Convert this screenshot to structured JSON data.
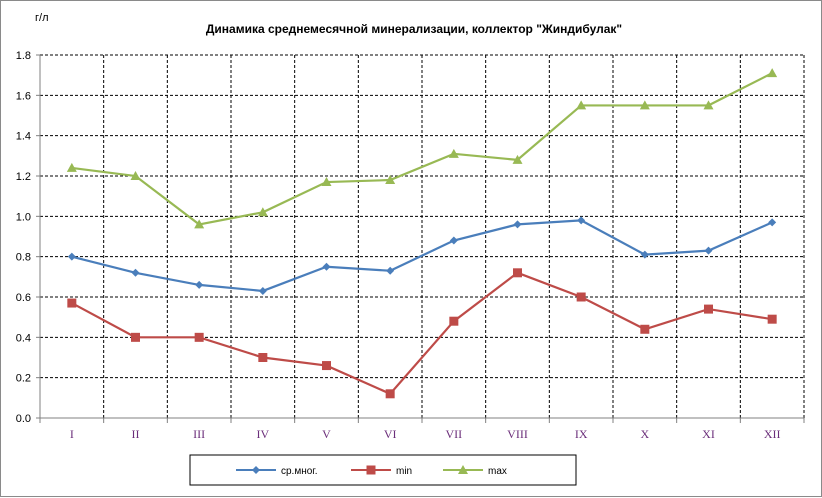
{
  "chart_data": {
    "type": "line",
    "title": "Динамика среднемесячной минерализации, коллектор \"Жиндибулак\"",
    "ylabel": "г/л",
    "xlabel": "",
    "categories": [
      "I",
      "II",
      "III",
      "IV",
      "V",
      "VI",
      "VII",
      "VIII",
      "IX",
      "X",
      "XI",
      "XII"
    ],
    "ylim": [
      0,
      1.8
    ],
    "yticks": [
      "0.0",
      "0.2",
      "0.4",
      "0.6",
      "0.8",
      "1.0",
      "1.2",
      "1.4",
      "1.6",
      "1.8"
    ],
    "grid": true,
    "legend_position": "bottom",
    "series": [
      {
        "name": "ср.мног.",
        "color": "#4a7ebb",
        "marker": "diamond",
        "values": [
          0.8,
          0.72,
          0.66,
          0.63,
          0.75,
          0.73,
          0.88,
          0.96,
          0.98,
          0.81,
          0.83,
          0.97
        ]
      },
      {
        "name": "min",
        "color": "#be4b48",
        "marker": "square",
        "values": [
          0.57,
          0.4,
          0.4,
          0.3,
          0.26,
          0.12,
          0.48,
          0.72,
          0.6,
          0.44,
          0.54,
          0.49
        ]
      },
      {
        "name": "max",
        "color": "#98b954",
        "marker": "triangle",
        "values": [
          1.24,
          1.2,
          0.96,
          1.02,
          1.17,
          1.18,
          1.31,
          1.28,
          1.55,
          1.55,
          1.55,
          1.71
        ]
      }
    ]
  }
}
